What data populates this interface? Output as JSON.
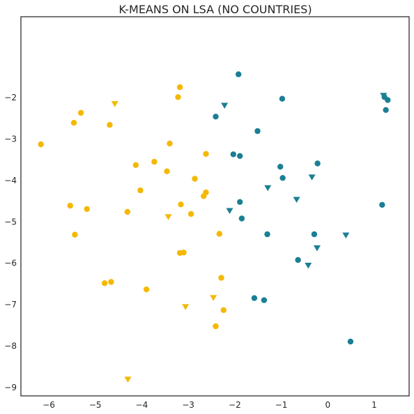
{
  "chart_data": {
    "type": "scatter",
    "title": "K-MEANS ON LSA (NO COUNTRIES)",
    "xlabel": "",
    "ylabel": "",
    "xlim": [
      -6.6,
      1.75
    ],
    "ylim": [
      -9.2,
      -0.05
    ],
    "grid": false,
    "x_ticks": [
      -6,
      -5,
      -4,
      -3,
      -2,
      -1,
      0,
      1
    ],
    "y_ticks": [
      -2,
      -3,
      -4,
      -5,
      -6,
      -7,
      -8,
      -9
    ],
    "x_tick_labels": [
      "−6",
      "−5",
      "−4",
      "−3",
      "−2",
      "−1",
      "0",
      "1"
    ],
    "y_tick_labels": [
      "−2",
      "−3",
      "−4",
      "−5",
      "−6",
      "−7",
      "−8",
      "−9"
    ],
    "series": [
      {
        "color": "#F5B800",
        "marker": "circle",
        "points": [
          [
            -3.18,
            -1.75
          ],
          [
            -3.22,
            -1.99
          ],
          [
            -5.31,
            -2.37
          ],
          [
            -5.46,
            -2.61
          ],
          [
            -4.69,
            -2.66
          ],
          [
            -6.17,
            -3.13
          ],
          [
            -3.4,
            -3.11
          ],
          [
            -2.62,
            -3.36
          ],
          [
            -3.73,
            -3.55
          ],
          [
            -4.13,
            -3.63
          ],
          [
            -3.46,
            -3.78
          ],
          [
            -2.86,
            -3.96
          ],
          [
            -4.03,
            -4.24
          ],
          [
            -2.62,
            -4.29
          ],
          [
            -2.67,
            -4.38
          ],
          [
            -3.16,
            -4.58
          ],
          [
            -5.54,
            -4.61
          ],
          [
            -5.18,
            -4.69
          ],
          [
            -4.31,
            -4.76
          ],
          [
            -2.94,
            -4.81
          ],
          [
            -5.44,
            -5.31
          ],
          [
            -2.33,
            -5.29
          ],
          [
            -3.1,
            -5.74
          ],
          [
            -3.18,
            -5.75
          ],
          [
            -2.29,
            -6.35
          ],
          [
            -4.66,
            -6.45
          ],
          [
            -4.8,
            -6.48
          ],
          [
            -3.9,
            -6.63
          ],
          [
            -2.24,
            -7.13
          ],
          [
            -2.41,
            -7.52
          ]
        ]
      },
      {
        "color": "#F5B800",
        "marker": "triangle-down",
        "points": [
          [
            -4.58,
            -2.15
          ],
          [
            -3.43,
            -4.88
          ],
          [
            -2.46,
            -6.83
          ],
          [
            -3.06,
            -7.05
          ],
          [
            -4.3,
            -8.8
          ]
        ]
      },
      {
        "color": "#1B7F94",
        "marker": "circle",
        "points": [
          [
            -1.92,
            -1.44
          ],
          [
            -0.98,
            -2.03
          ],
          [
            1.22,
            -1.99
          ],
          [
            1.29,
            -2.06
          ],
          [
            1.25,
            -2.3
          ],
          [
            -2.41,
            -2.46
          ],
          [
            -1.51,
            -2.81
          ],
          [
            -2.03,
            -3.37
          ],
          [
            -1.89,
            -3.41
          ],
          [
            -0.22,
            -3.59
          ],
          [
            -1.02,
            -3.67
          ],
          [
            -0.97,
            -3.94
          ],
          [
            -1.89,
            -4.52
          ],
          [
            1.17,
            -4.59
          ],
          [
            -1.85,
            -4.92
          ],
          [
            -1.3,
            -5.3
          ],
          [
            -0.29,
            -5.3
          ],
          [
            -0.64,
            -5.92
          ],
          [
            -1.58,
            -6.84
          ],
          [
            -1.37,
            -6.89
          ],
          [
            0.49,
            -7.89
          ]
        ]
      },
      {
        "color": "#1B7F94",
        "marker": "triangle-down",
        "points": [
          [
            1.2,
            -1.95
          ],
          [
            -2.22,
            -2.19
          ],
          [
            -0.34,
            -3.92
          ],
          [
            -1.29,
            -4.18
          ],
          [
            -0.67,
            -4.46
          ],
          [
            -2.11,
            -4.73
          ],
          [
            0.39,
            -5.32
          ],
          [
            -0.23,
            -5.63
          ],
          [
            -0.42,
            -6.05
          ]
        ]
      }
    ]
  }
}
